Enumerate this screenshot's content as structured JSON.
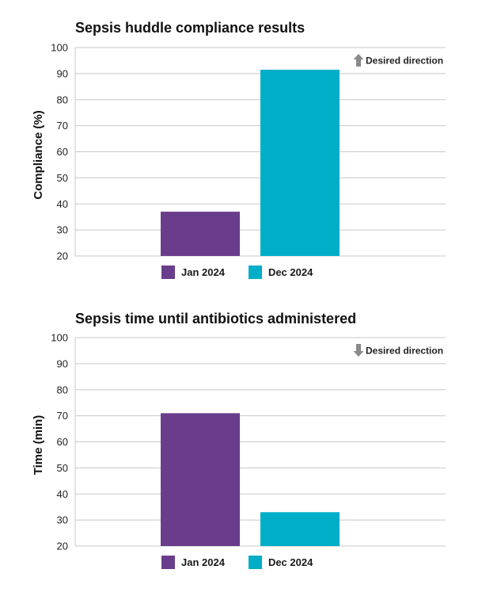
{
  "colors": {
    "jan": "#6a3d8c",
    "dec": "#00aec7",
    "grid": "#c8c8c8",
    "arrow": "#8a8a8a"
  },
  "chart_data": [
    {
      "type": "bar",
      "title": "Sepsis huddle compliance results",
      "ylabel": "Compliance (%)",
      "ylim": [
        20,
        100
      ],
      "yticks": [
        20,
        30,
        40,
        50,
        60,
        70,
        80,
        90,
        100
      ],
      "series": [
        {
          "name": "Jan 2024",
          "values": [
            37
          ]
        },
        {
          "name": "Dec 2024",
          "values": [
            91.5
          ]
        }
      ],
      "annotation": {
        "text": "Desired direction",
        "arrow": "up-arrow-icon"
      },
      "grid": true,
      "legend": "bottom-center"
    },
    {
      "type": "bar",
      "title": "Sepsis time until antibiotics administered",
      "ylabel": "Time (min)",
      "ylim": [
        20,
        100
      ],
      "yticks": [
        20,
        30,
        40,
        50,
        60,
        70,
        80,
        90,
        100
      ],
      "series": [
        {
          "name": "Jan 2024",
          "values": [
            71
          ]
        },
        {
          "name": "Dec 2024",
          "values": [
            33
          ]
        }
      ],
      "annotation": {
        "text": "Desired direction",
        "arrow": "down-arrow-icon"
      },
      "grid": true,
      "legend": "bottom-center"
    }
  ]
}
